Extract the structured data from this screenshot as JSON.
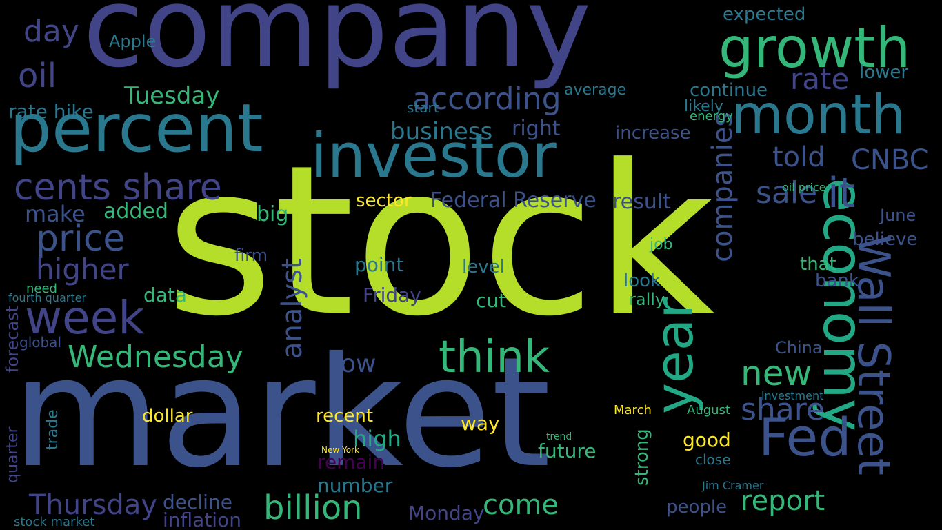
{
  "background": "#000000",
  "palette": {
    "lime": "#b5de2b",
    "indigo": "#414487",
    "slate": "#3b528b",
    "teal": "#2a788e",
    "green": "#35b779",
    "mint": "#22a884",
    "purple": "#440154",
    "yellow": "#fde725"
  },
  "words": [
    {
      "text": "stock",
      "size": 300,
      "color": "lime"
    },
    {
      "text": "market",
      "size": 220,
      "color": "slate"
    },
    {
      "text": "company",
      "size": 160,
      "color": "indigo"
    },
    {
      "text": "percent",
      "size": 96,
      "color": "teal"
    },
    {
      "text": "investor",
      "size": 88,
      "color": "teal"
    },
    {
      "text": "growth",
      "size": 80,
      "color": "green"
    },
    {
      "text": "month",
      "size": 78,
      "color": "teal"
    },
    {
      "text": "economy",
      "size": 80,
      "color": "mint"
    },
    {
      "text": "Wall Street",
      "size": 64,
      "color": "slate"
    },
    {
      "text": "year",
      "size": 76,
      "color": "mint"
    },
    {
      "text": "Fed",
      "size": 76,
      "color": "slate"
    },
    {
      "text": "billion",
      "size": 48,
      "color": "green"
    },
    {
      "text": "think",
      "size": 64,
      "color": "green"
    },
    {
      "text": "week",
      "size": 66,
      "color": "indigo"
    },
    {
      "text": "cents share",
      "size": 52,
      "color": "indigo"
    },
    {
      "text": "price",
      "size": 52,
      "color": "slate"
    },
    {
      "text": "higher",
      "size": 42,
      "color": "indigo"
    },
    {
      "text": "according",
      "size": 44,
      "color": "slate"
    },
    {
      "text": "oil",
      "size": 48,
      "color": "indigo"
    },
    {
      "text": "day",
      "size": 44,
      "color": "indigo"
    },
    {
      "text": "Tuesday",
      "size": 34,
      "color": "green"
    },
    {
      "text": "business",
      "size": 34,
      "color": "teal"
    },
    {
      "text": "right",
      "size": 30,
      "color": "slate"
    },
    {
      "text": "Wednesday",
      "size": 44,
      "color": "green"
    },
    {
      "text": "Thursday",
      "size": 40,
      "color": "indigo"
    },
    {
      "text": "come",
      "size": 40,
      "color": "green"
    },
    {
      "text": "report",
      "size": 40,
      "color": "green"
    },
    {
      "text": "new",
      "size": 50,
      "color": "green"
    },
    {
      "text": "share",
      "size": 44,
      "color": "slate"
    },
    {
      "text": "sale",
      "size": 44,
      "color": "slate"
    },
    {
      "text": "it",
      "size": 60,
      "color": "slate"
    },
    {
      "text": "told",
      "size": 40,
      "color": "slate"
    },
    {
      "text": "CNBC",
      "size": 40,
      "color": "slate"
    },
    {
      "text": "rate",
      "size": 42,
      "color": "indigo"
    },
    {
      "text": "rate hike",
      "size": 28,
      "color": "teal"
    },
    {
      "text": "Federal Reserve",
      "size": 30,
      "color": "slate"
    },
    {
      "text": "result",
      "size": 30,
      "color": "slate"
    },
    {
      "text": "sector",
      "size": 26,
      "color": "yellow"
    },
    {
      "text": "make",
      "size": 32,
      "color": "slate"
    },
    {
      "text": "added",
      "size": 30,
      "color": "green"
    },
    {
      "text": "big",
      "size": 30,
      "color": "green"
    },
    {
      "text": "analyst",
      "size": 40,
      "color": "slate"
    },
    {
      "text": "companies",
      "size": 40,
      "color": "slate"
    },
    {
      "text": "expected",
      "size": 26,
      "color": "teal"
    },
    {
      "text": "continue",
      "size": 26,
      "color": "teal"
    },
    {
      "text": "increase",
      "size": 26,
      "color": "slate"
    },
    {
      "text": "lower",
      "size": 26,
      "color": "teal"
    },
    {
      "text": "point",
      "size": 28,
      "color": "teal"
    },
    {
      "text": "level",
      "size": 26,
      "color": "teal"
    },
    {
      "text": "cut",
      "size": 28,
      "color": "green"
    },
    {
      "text": "Friday",
      "size": 28,
      "color": "indigo"
    },
    {
      "text": "low",
      "size": 36,
      "color": "slate"
    },
    {
      "text": "recent",
      "size": 26,
      "color": "yellow"
    },
    {
      "text": "way",
      "size": 28,
      "color": "yellow"
    },
    {
      "text": "high",
      "size": 32,
      "color": "mint"
    },
    {
      "text": "remain",
      "size": 28,
      "color": "purple"
    },
    {
      "text": "number",
      "size": 28,
      "color": "teal"
    },
    {
      "text": "dollar",
      "size": 26,
      "color": "yellow"
    },
    {
      "text": "decline",
      "size": 28,
      "color": "slate"
    },
    {
      "text": "inflation",
      "size": 28,
      "color": "indigo"
    },
    {
      "text": "Monday",
      "size": 28,
      "color": "indigo"
    },
    {
      "text": "future",
      "size": 28,
      "color": "green"
    },
    {
      "text": "trend",
      "size": 14,
      "color": "green"
    },
    {
      "text": "strong",
      "size": 26,
      "color": "green"
    },
    {
      "text": "good",
      "size": 28,
      "color": "yellow"
    },
    {
      "text": "close",
      "size": 20,
      "color": "teal"
    },
    {
      "text": "people",
      "size": 26,
      "color": "slate"
    },
    {
      "text": "China",
      "size": 24,
      "color": "slate"
    },
    {
      "text": "bank",
      "size": 26,
      "color": "slate"
    },
    {
      "text": "that",
      "size": 26,
      "color": "green"
    },
    {
      "text": "believe",
      "size": 26,
      "color": "slate"
    },
    {
      "text": "June",
      "size": 24,
      "color": "slate"
    },
    {
      "text": "data",
      "size": 28,
      "color": "green"
    },
    {
      "text": "global",
      "size": 20,
      "color": "slate"
    },
    {
      "text": "forecast",
      "size": 24,
      "color": "indigo"
    },
    {
      "text": "quarter",
      "size": 22,
      "color": "indigo"
    },
    {
      "text": "trade",
      "size": 22,
      "color": "teal"
    },
    {
      "text": "fourth quarter",
      "size": 16,
      "color": "teal"
    },
    {
      "text": "need",
      "size": 18,
      "color": "green"
    },
    {
      "text": "stock market",
      "size": 18,
      "color": "teal"
    },
    {
      "text": "look",
      "size": 26,
      "color": "teal"
    },
    {
      "text": "rally",
      "size": 24,
      "color": "green"
    },
    {
      "text": "job",
      "size": 22,
      "color": "green"
    },
    {
      "text": "firm",
      "size": 24,
      "color": "slate"
    },
    {
      "text": "likely",
      "size": 22,
      "color": "teal"
    },
    {
      "text": "energy",
      "size": 18,
      "color": "green"
    },
    {
      "text": "Apple",
      "size": 24,
      "color": "teal"
    },
    {
      "text": "average",
      "size": 22,
      "color": "teal"
    },
    {
      "text": "start",
      "size": 20,
      "color": "teal"
    },
    {
      "text": "oil price",
      "size": 16,
      "color": "green"
    },
    {
      "text": "August",
      "size": 18,
      "color": "green"
    },
    {
      "text": "March",
      "size": 18,
      "color": "yellow"
    },
    {
      "text": "investment",
      "size": 16,
      "color": "teal"
    },
    {
      "text": "New York",
      "size": 12,
      "color": "yellow"
    },
    {
      "text": "Jim Cramer",
      "size": 16,
      "color": "teal"
    }
  ]
}
